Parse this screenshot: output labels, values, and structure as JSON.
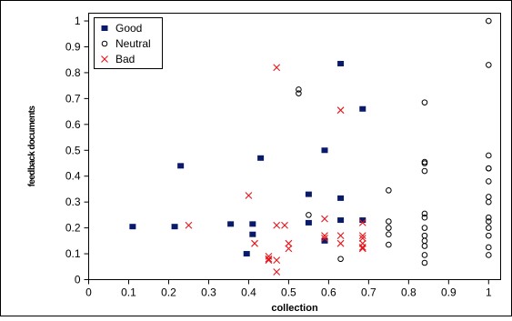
{
  "chart_data": {
    "type": "scatter",
    "title": "",
    "xlabel": "collection",
    "ylabel": "feedback documents",
    "xlim": [
      0,
      1.03
    ],
    "ylim": [
      0,
      1.03
    ],
    "x_ticks": [
      "0",
      "0.1",
      "0.2",
      "0.3",
      "0.4",
      "0.5",
      "0.6",
      "0.7",
      "0.8",
      "0.9",
      "1"
    ],
    "y_ticks": [
      "0",
      "0.1",
      "0.2",
      "0.3",
      "0.4",
      "0.5",
      "0.6",
      "0.7",
      "0.8",
      "0.9",
      "1"
    ],
    "grid": false,
    "legend_position": "top-left",
    "series": [
      {
        "name": "Good",
        "marker": "square",
        "color": "#0a1a6b",
        "points": [
          [
            0.11,
            0.205
          ],
          [
            0.215,
            0.205
          ],
          [
            0.23,
            0.44
          ],
          [
            0.355,
            0.215
          ],
          [
            0.395,
            0.1
          ],
          [
            0.41,
            0.215
          ],
          [
            0.41,
            0.175
          ],
          [
            0.43,
            0.47
          ],
          [
            0.55,
            0.33
          ],
          [
            0.55,
            0.22
          ],
          [
            0.59,
            0.5
          ],
          [
            0.59,
            0.15
          ],
          [
            0.63,
            0.835
          ],
          [
            0.63,
            0.315
          ],
          [
            0.63,
            0.23
          ],
          [
            0.685,
            0.66
          ],
          [
            0.685,
            0.23
          ]
        ]
      },
      {
        "name": "Neutral",
        "marker": "circle",
        "color": "#000000",
        "points": [
          [
            0.525,
            0.735
          ],
          [
            0.525,
            0.72
          ],
          [
            0.55,
            0.25
          ],
          [
            0.63,
            0.08
          ],
          [
            0.75,
            0.345
          ],
          [
            0.75,
            0.225
          ],
          [
            0.75,
            0.2
          ],
          [
            0.75,
            0.175
          ],
          [
            0.75,
            0.135
          ],
          [
            0.84,
            0.685
          ],
          [
            0.84,
            0.455
          ],
          [
            0.84,
            0.45
          ],
          [
            0.84,
            0.42
          ],
          [
            0.84,
            0.255
          ],
          [
            0.84,
            0.24
          ],
          [
            0.84,
            0.2
          ],
          [
            0.84,
            0.17
          ],
          [
            0.84,
            0.15
          ],
          [
            0.84,
            0.13
          ],
          [
            0.84,
            0.095
          ],
          [
            0.84,
            0.065
          ],
          [
            1.0,
            1.0
          ],
          [
            1.0,
            0.83
          ],
          [
            1.0,
            0.48
          ],
          [
            1.0,
            0.43
          ],
          [
            1.0,
            0.43
          ],
          [
            1.0,
            0.38
          ],
          [
            1.0,
            0.32
          ],
          [
            1.0,
            0.3
          ],
          [
            1.0,
            0.24
          ],
          [
            1.0,
            0.225
          ],
          [
            1.0,
            0.2
          ],
          [
            1.0,
            0.17
          ],
          [
            1.0,
            0.125
          ],
          [
            1.0,
            0.095
          ]
        ]
      },
      {
        "name": "Bad",
        "marker": "x",
        "color": "#e8141b",
        "points": [
          [
            0.25,
            0.21
          ],
          [
            0.4,
            0.325
          ],
          [
            0.415,
            0.14
          ],
          [
            0.45,
            0.09
          ],
          [
            0.45,
            0.08
          ],
          [
            0.45,
            0.075
          ],
          [
            0.47,
            0.82
          ],
          [
            0.47,
            0.21
          ],
          [
            0.47,
            0.075
          ],
          [
            0.47,
            0.03
          ],
          [
            0.49,
            0.21
          ],
          [
            0.5,
            0.14
          ],
          [
            0.5,
            0.12
          ],
          [
            0.59,
            0.235
          ],
          [
            0.59,
            0.17
          ],
          [
            0.59,
            0.16
          ],
          [
            0.63,
            0.655
          ],
          [
            0.63,
            0.17
          ],
          [
            0.63,
            0.14
          ],
          [
            0.685,
            0.22
          ],
          [
            0.685,
            0.17
          ],
          [
            0.685,
            0.16
          ],
          [
            0.685,
            0.14
          ],
          [
            0.685,
            0.125
          ],
          [
            0.685,
            0.12
          ]
        ]
      }
    ]
  }
}
